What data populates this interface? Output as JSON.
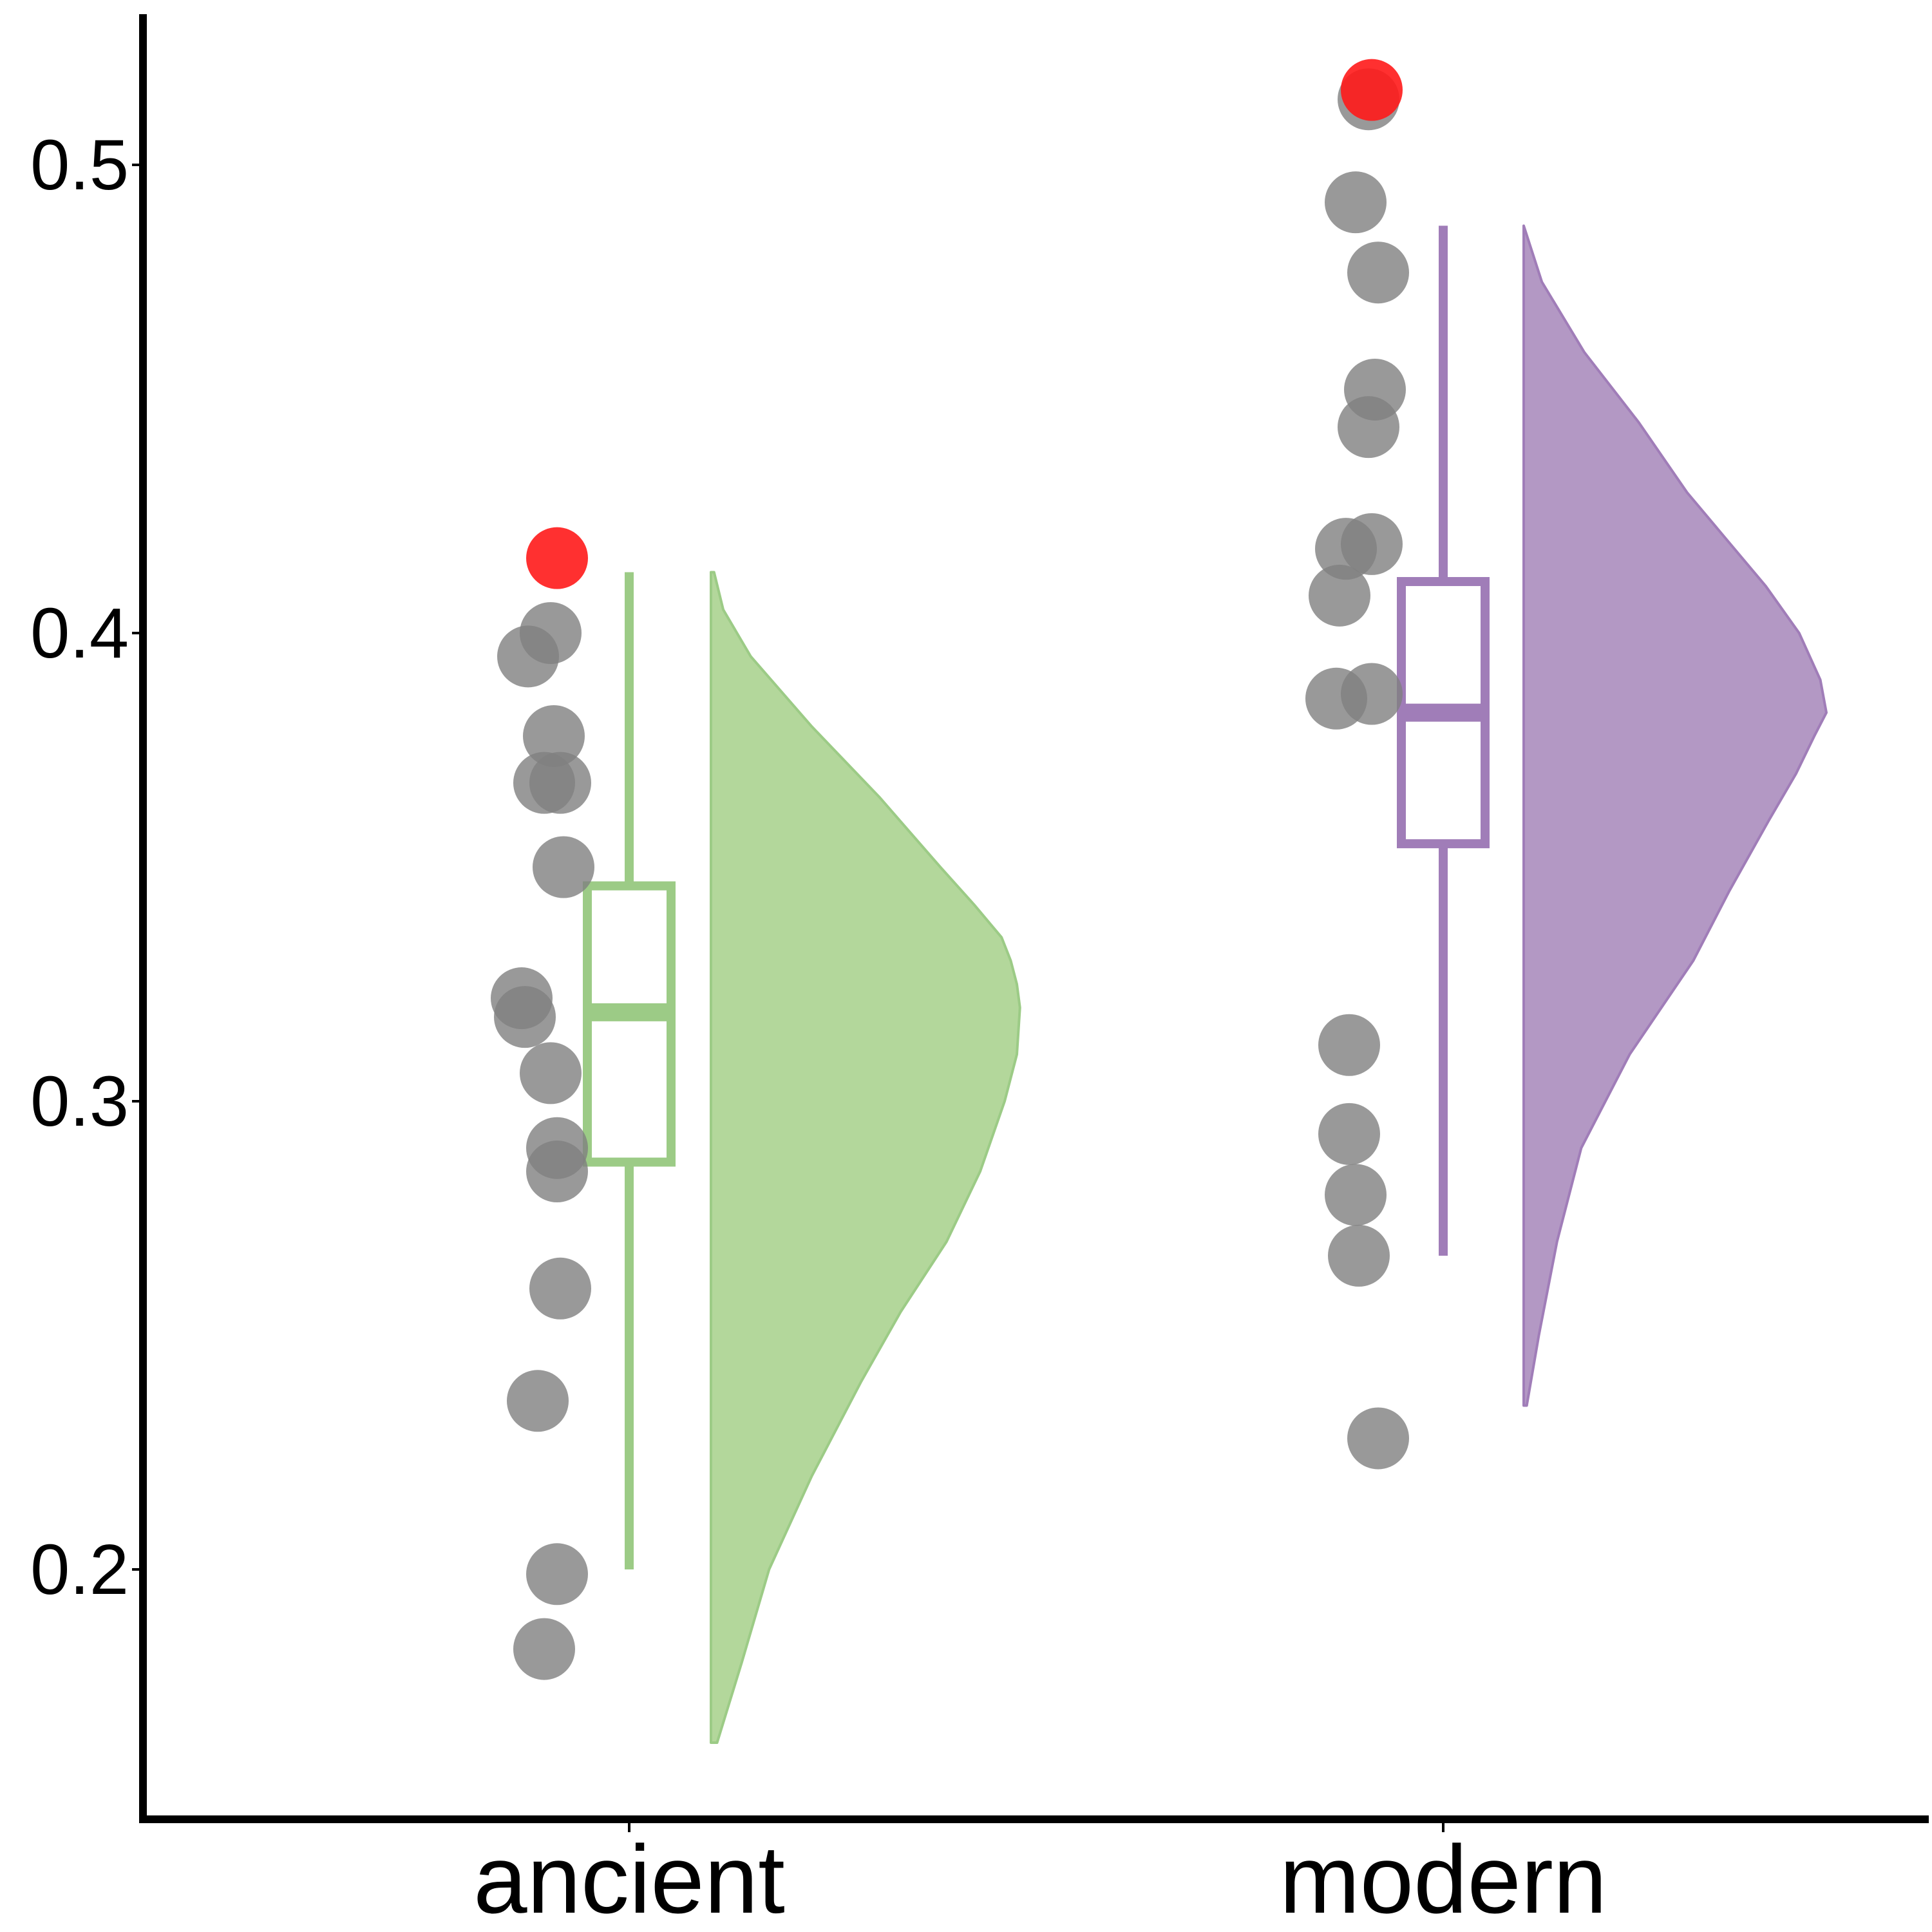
{
  "chart_data": {
    "type": "raincloud",
    "title": "",
    "xlabel": "",
    "ylabel": "",
    "ylim": [
      0.16,
      0.53
    ],
    "yticks": [
      0.2,
      0.3,
      0.4,
      0.5
    ],
    "ytick_labels": [
      "0.2",
      "0.3",
      "0.4",
      "0.5"
    ],
    "grid": false,
    "categories": [
      "ancient",
      "modern"
    ],
    "groups": [
      {
        "category": "ancient",
        "color": "#9ccb86",
        "fill_color": "#b3d79b",
        "points": [
          0.183,
          0.199,
          0.236,
          0.26,
          0.285,
          0.29,
          0.306,
          0.318,
          0.322,
          0.35,
          0.368,
          0.368,
          0.378,
          0.395,
          0.4
        ],
        "highlight_points": [
          0.416
        ],
        "box": {
          "whisker_low": 0.2,
          "q1": 0.287,
          "median": 0.319,
          "q3": 0.346,
          "whisker_high": 0.413
        },
        "density": {
          "y": [
            0.163,
            0.18,
            0.2,
            0.22,
            0.24,
            0.255,
            0.27,
            0.285,
            0.3,
            0.31,
            0.32,
            0.325,
            0.33,
            0.335,
            0.342,
            0.35,
            0.365,
            0.38,
            0.395,
            0.405,
            0.413
          ],
          "d": [
            0.02,
            0.1,
            0.19,
            0.33,
            0.49,
            0.62,
            0.77,
            0.88,
            0.96,
            1.0,
            1.01,
            1.0,
            0.98,
            0.95,
            0.86,
            0.75,
            0.55,
            0.33,
            0.13,
            0.04,
            0.01
          ]
        }
      },
      {
        "category": "modern",
        "color": "#a07db8",
        "fill_color": "#b398c4",
        "points": [
          0.228,
          0.267,
          0.28,
          0.293,
          0.312,
          0.386,
          0.387,
          0.408,
          0.418,
          0.419,
          0.444,
          0.452,
          0.477,
          0.492,
          0.514
        ],
        "highlight_points": [
          0.516
        ],
        "box": {
          "whisker_low": 0.267,
          "q1": 0.355,
          "median": 0.383,
          "q3": 0.411,
          "whisker_high": 0.487
        },
        "density": {
          "y": [
            0.235,
            0.25,
            0.27,
            0.29,
            0.31,
            0.33,
            0.345,
            0.36,
            0.37,
            0.378,
            0.383,
            0.39,
            0.4,
            0.41,
            0.42,
            0.43,
            0.445,
            0.46,
            0.475,
            0.485,
            0.487
          ],
          "d": [
            0.01,
            0.05,
            0.11,
            0.19,
            0.35,
            0.56,
            0.68,
            0.81,
            0.9,
            0.96,
            1.0,
            0.98,
            0.91,
            0.8,
            0.67,
            0.54,
            0.38,
            0.2,
            0.06,
            0.01,
            0.0
          ]
        }
      }
    ]
  }
}
